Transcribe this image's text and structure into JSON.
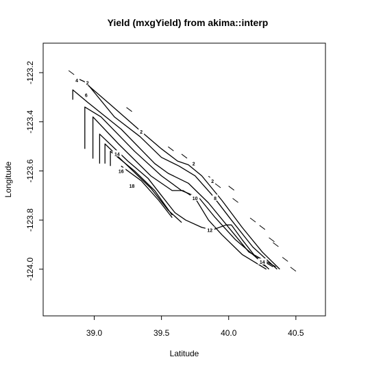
{
  "chart_data": {
    "type": "contour",
    "title": "Yield (mxgYield) from akima::interp",
    "xlabel": "Latitude",
    "ylabel": "Longitude",
    "xlim": [
      38.62,
      40.72
    ],
    "ylim": [
      -124.19,
      -123.08
    ],
    "x_ticks": [
      39.0,
      39.5,
      40.0,
      40.5
    ],
    "x_tick_labels": [
      "39.0",
      "39.5",
      "40.0",
      "40.5"
    ],
    "y_ticks": [
      -123.2,
      -123.4,
      -123.6,
      -123.8,
      -124.0
    ],
    "y_tick_labels": [
      "-123.2",
      "-123.4",
      "-123.6",
      "-123.8",
      "-124.0"
    ],
    "grid": false,
    "contours": [
      {
        "level": "2",
        "points": [
          [
            38.93,
            -123.24
          ],
          [
            39.12,
            -123.33
          ],
          [
            39.35,
            -123.44
          ],
          [
            39.5,
            -123.51
          ],
          [
            39.62,
            -123.56
          ],
          [
            39.7,
            -123.575
          ],
          [
            39.8,
            -123.62
          ],
          [
            39.95,
            -123.72
          ],
          [
            40.1,
            -123.83
          ],
          [
            40.25,
            -123.93
          ],
          [
            40.38,
            -124.0
          ]
        ]
      },
      {
        "level": "4",
        "points": [
          [
            38.86,
            -123.22
          ],
          [
            38.94,
            -123.24
          ],
          [
            39.15,
            -123.38
          ],
          [
            39.34,
            -123.46
          ],
          [
            39.5,
            -123.545
          ],
          [
            39.63,
            -123.58
          ],
          [
            39.75,
            -123.62
          ],
          [
            39.88,
            -123.7
          ],
          [
            40.02,
            -123.8
          ],
          [
            40.18,
            -123.91
          ],
          [
            40.36,
            -124.0
          ]
        ]
      },
      {
        "level": "6",
        "points": [
          [
            38.84,
            -123.31
          ],
          [
            38.84,
            -123.27
          ],
          [
            38.95,
            -123.32
          ],
          [
            39.2,
            -123.43
          ],
          [
            39.45,
            -123.57
          ],
          [
            39.55,
            -123.61
          ],
          [
            39.7,
            -123.65
          ],
          [
            39.85,
            -123.73
          ],
          [
            40.0,
            -123.83
          ],
          [
            40.15,
            -123.93
          ],
          [
            40.35,
            -123.99
          ]
        ]
      },
      {
        "level": "8",
        "points": [
          [
            38.93,
            -123.51
          ],
          [
            38.93,
            -123.34
          ],
          [
            39.05,
            -123.38
          ],
          [
            39.3,
            -123.52
          ],
          [
            39.5,
            -123.62
          ],
          [
            39.65,
            -123.68
          ],
          [
            39.78,
            -123.71
          ],
          [
            39.9,
            -123.79
          ],
          [
            40.05,
            -123.88
          ],
          [
            40.2,
            -123.95
          ],
          [
            40.33,
            -123.99
          ]
        ]
      },
      {
        "level": "10",
        "points": [
          [
            38.99,
            -123.55
          ],
          [
            38.99,
            -123.38
          ],
          [
            39.18,
            -123.49
          ],
          [
            39.42,
            -123.62
          ],
          [
            39.58,
            -123.68
          ],
          [
            39.66,
            -123.68
          ],
          [
            39.75,
            -123.71
          ],
          [
            39.85,
            -123.8
          ],
          [
            39.95,
            -123.86
          ],
          [
            40.1,
            -123.94
          ],
          [
            40.28,
            -124.0
          ]
        ]
      },
      {
        "level": "12",
        "points": [
          [
            39.04,
            -123.57
          ],
          [
            39.04,
            -123.45
          ],
          [
            39.25,
            -123.56
          ],
          [
            39.4,
            -123.63
          ],
          [
            39.5,
            -123.7
          ],
          [
            39.6,
            -123.77
          ],
          [
            39.68,
            -123.8
          ],
          [
            39.8,
            -123.83
          ],
          [
            39.88,
            -123.84
          ],
          [
            39.98,
            -123.82
          ],
          [
            40.02,
            -123.82
          ],
          [
            40.1,
            -123.88
          ],
          [
            40.2,
            -123.95
          ],
          [
            40.3,
            -124.0
          ]
        ]
      },
      {
        "level": "14",
        "points": [
          [
            39.08,
            -123.57
          ],
          [
            39.08,
            -123.49
          ],
          [
            39.25,
            -123.58
          ],
          [
            39.42,
            -123.67
          ],
          [
            39.55,
            -123.76
          ],
          [
            39.65,
            -123.81
          ]
        ]
      },
      {
        "level": "16",
        "points": [
          [
            39.12,
            -123.58
          ],
          [
            39.12,
            -123.52
          ],
          [
            39.3,
            -123.6
          ],
          [
            39.45,
            -123.68
          ],
          [
            39.58,
            -123.78
          ]
        ]
      },
      {
        "level": "18",
        "points": [
          [
            39.2,
            -123.58
          ],
          [
            39.35,
            -123.64
          ],
          [
            39.48,
            -123.72
          ],
          [
            39.58,
            -123.79
          ]
        ]
      },
      {
        "level": "14",
        "points": [
          [
            40.22,
            -123.97
          ],
          [
            40.28,
            -123.99
          ]
        ]
      }
    ],
    "contour_labels": [
      {
        "text": "4",
        "x": 38.87,
        "y": -123.23
      },
      {
        "text": "2",
        "x": 38.95,
        "y": -123.24
      },
      {
        "text": "6",
        "x": 38.94,
        "y": -123.29
      },
      {
        "text": "2",
        "x": 39.35,
        "y": -123.44
      },
      {
        "text": "2",
        "x": 39.74,
        "y": -123.57
      },
      {
        "text": "2",
        "x": 39.88,
        "y": -123.64
      },
      {
        "text": "10",
        "x": 39.75,
        "y": -123.71
      },
      {
        "text": "8",
        "x": 39.9,
        "y": -123.71
      },
      {
        "text": "12",
        "x": 39.86,
        "y": -123.84
      },
      {
        "text": "14",
        "x": 39.17,
        "y": -123.53
      },
      {
        "text": "16",
        "x": 39.2,
        "y": -123.6
      },
      {
        "text": "18",
        "x": 39.28,
        "y": -123.66
      },
      {
        "text": "14",
        "x": 40.25,
        "y": -123.97
      }
    ],
    "scattered_edge_points": [
      [
        38.83,
        -123.2
      ],
      [
        39.26,
        -123.35
      ],
      [
        39.57,
        -123.51
      ],
      [
        39.67,
        -123.54
      ],
      [
        39.87,
        -123.63
      ],
      [
        39.92,
        -123.66
      ],
      [
        40.02,
        -123.67
      ],
      [
        40.05,
        -123.72
      ],
      [
        40.18,
        -123.8
      ],
      [
        40.25,
        -123.83
      ],
      [
        40.35,
        -123.9
      ],
      [
        40.42,
        -123.96
      ],
      [
        40.48,
        -124.0
      ],
      [
        40.32,
        -123.88
      ]
    ]
  }
}
